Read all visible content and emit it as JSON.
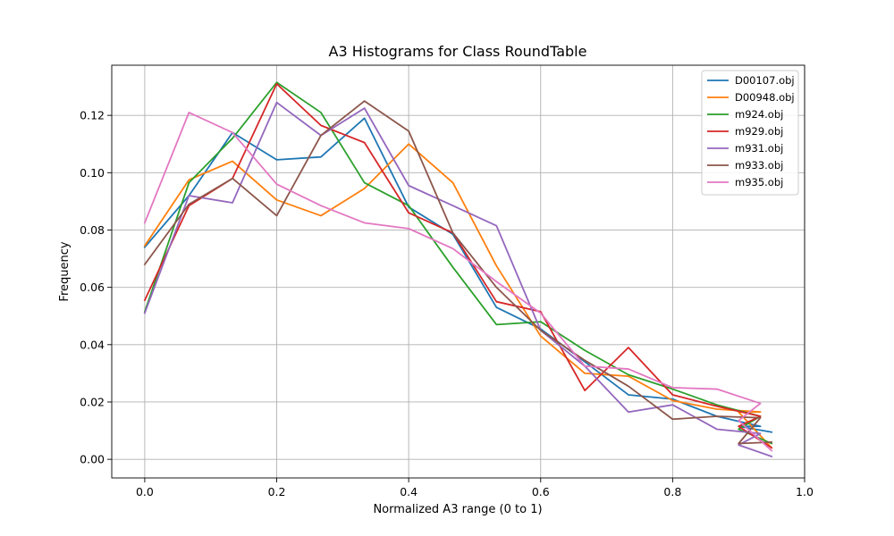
{
  "chart_data": {
    "type": "line",
    "title": "A3 Histograms for Class RoundTable",
    "xlabel": "Normalized A3 range (0 to 1)",
    "ylabel": "Frequency",
    "xlim": [
      -0.05,
      1.0
    ],
    "ylim": [
      -0.0065,
      0.1375
    ],
    "xticks": [
      0.0,
      0.2,
      0.4,
      0.6,
      0.8,
      1.0
    ],
    "xtick_labels": [
      "0.0",
      "0.2",
      "0.4",
      "0.6",
      "0.8",
      "1.0"
    ],
    "yticks": [
      0.0,
      0.02,
      0.04,
      0.06,
      0.08,
      0.1,
      0.12
    ],
    "ytick_labels": [
      "0.00",
      "0.02",
      "0.04",
      "0.06",
      "0.08",
      "0.10",
      "0.12"
    ],
    "grid": true,
    "legend_position": "top-right",
    "x": [
      0.0,
      0.067,
      0.133,
      0.2,
      0.267,
      0.333,
      0.4,
      0.467,
      0.533,
      0.6,
      0.667,
      0.733,
      0.8,
      0.867,
      0.933
    ],
    "series": [
      {
        "name": "D00107.obj",
        "color": "#1f77b4",
        "values": [
          0.074,
          0.092,
          0.114,
          0.1045,
          0.1055,
          0.119,
          0.088,
          0.0785,
          0.053,
          0.0455,
          0.034,
          0.0225,
          0.021,
          0.015,
          0.0115
        ]
      },
      {
        "name": "D00948.obj",
        "color": "#ff7f0e",
        "values": [
          0.0745,
          0.0975,
          0.104,
          0.0905,
          0.085,
          0.0945,
          0.11,
          0.0965,
          0.0675,
          0.043,
          0.03,
          0.029,
          0.0205,
          0.0175,
          0.0165
        ]
      },
      {
        "name": "m924.obj",
        "color": "#2ca02c",
        "values": [
          0.0515,
          0.0965,
          0.112,
          0.1315,
          0.121,
          0.0965,
          0.0885,
          0.067,
          0.047,
          0.048,
          0.038,
          0.0295,
          0.0245,
          0.019,
          0.015
        ]
      },
      {
        "name": "m929.obj",
        "color": "#d62728",
        "values": [
          0.0555,
          0.0885,
          0.098,
          0.131,
          0.1165,
          0.1105,
          0.086,
          0.079,
          0.055,
          0.0515,
          0.024,
          0.039,
          0.0225,
          0.0185,
          0.015
        ]
      },
      {
        "name": "m931.obj",
        "color": "#9467bd",
        "values": [
          0.051,
          0.092,
          0.0895,
          0.1245,
          0.113,
          0.1225,
          0.0955,
          0.0885,
          0.0815,
          0.045,
          0.0325,
          0.0165,
          0.019,
          0.0105,
          0.009
        ]
      },
      {
        "name": "m933.obj",
        "color": "#8c564b",
        "values": [
          0.068,
          0.089,
          0.098,
          0.085,
          0.113,
          0.125,
          0.1145,
          0.079,
          0.06,
          0.045,
          0.0345,
          0.0255,
          0.014,
          0.015,
          0.0145
        ]
      },
      {
        "name": "m935.obj",
        "color": "#e377c2",
        "values": [
          0.0825,
          0.121,
          0.114,
          0.096,
          0.0885,
          0.0825,
          0.0805,
          0.0735,
          0.062,
          0.051,
          0.0325,
          0.0315,
          0.025,
          0.0245,
          0.0195
        ]
      }
    ],
    "x_tail": [
      0.9,
      0.95
    ],
    "series_tail": [
      [
        0.0115,
        0.0095
      ],
      [
        0.0165,
        0.004
      ],
      [
        0.0105,
        0.0055
      ],
      [
        0.0115,
        0.004
      ],
      [
        0.005,
        0.001
      ],
      [
        0.0055,
        0.006
      ],
      [
        0.0135,
        0.003
      ]
    ]
  }
}
